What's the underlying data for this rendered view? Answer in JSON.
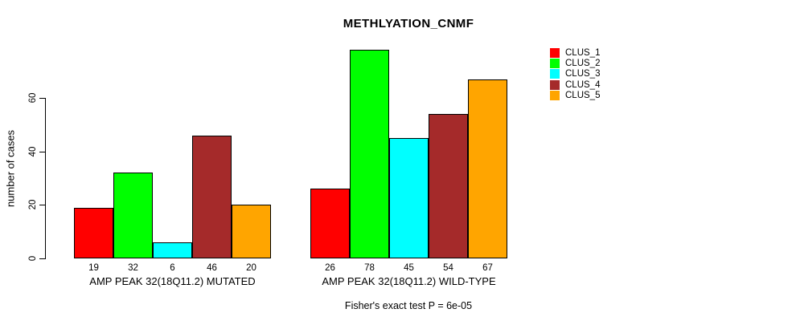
{
  "chart_data": {
    "type": "bar",
    "title": "METHLYATION_CNMF",
    "ylabel": "number of cases",
    "xlabel": "",
    "ylim": [
      0,
      78
    ],
    "yticks": [
      0,
      20,
      40,
      60
    ],
    "grid": false,
    "legend_position": "top-right",
    "series": [
      {
        "name": "CLUS_1",
        "color": "#FF0000"
      },
      {
        "name": "CLUS_2",
        "color": "#00FF00"
      },
      {
        "name": "CLUS_3",
        "color": "#00FFFF"
      },
      {
        "name": "CLUS_4",
        "color": "#A52A2A"
      },
      {
        "name": "CLUS_5",
        "color": "#FFA500"
      }
    ],
    "groups": [
      {
        "label": "AMP PEAK 32(18Q11.2) MUTATED",
        "values": [
          19,
          32,
          6,
          46,
          20
        ]
      },
      {
        "label": "AMP PEAK 32(18Q11.2) WILD-TYPE",
        "values": [
          26,
          78,
          45,
          54,
          67
        ]
      }
    ],
    "bar_value_labels_shown": true,
    "annotation": "Fisher's exact test P = 6e-05"
  }
}
